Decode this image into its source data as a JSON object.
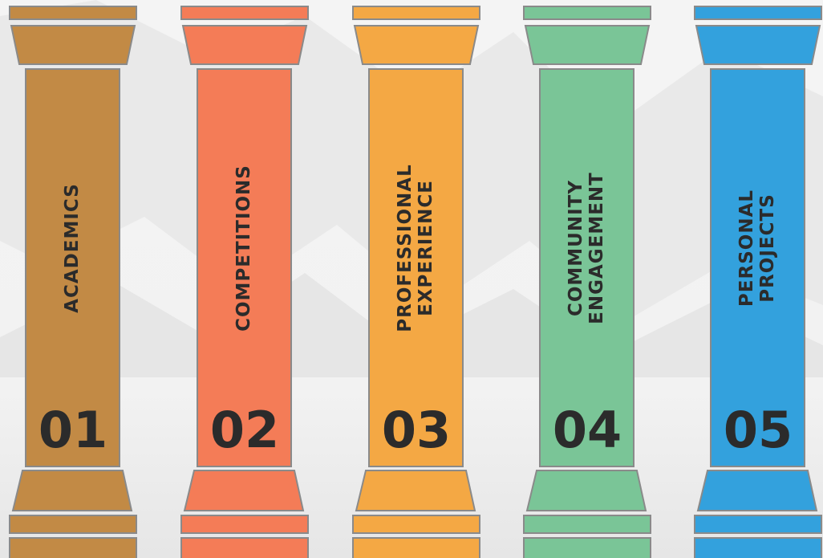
{
  "pillars": [
    {
      "label_lines": [
        "ACADEMICS"
      ],
      "number": "01",
      "color": "#c28a45"
    },
    {
      "label_lines": [
        "COMPETITIONS"
      ],
      "number": "02",
      "color": "#f47c57"
    },
    {
      "label_lines": [
        "PROFESSIONAL",
        "EXPERIENCE"
      ],
      "number": "03",
      "color": "#f4a844"
    },
    {
      "label_lines": [
        "COMMUNITY",
        "ENGAGEMENT"
      ],
      "number": "04",
      "color": "#7ac597"
    },
    {
      "label_lines": [
        "PERSONAL",
        "PROJECTS"
      ],
      "number": "05",
      "color": "#33a1dd"
    }
  ],
  "stroke_color": "#8a8a8a",
  "background_color": "#f3f3f3"
}
